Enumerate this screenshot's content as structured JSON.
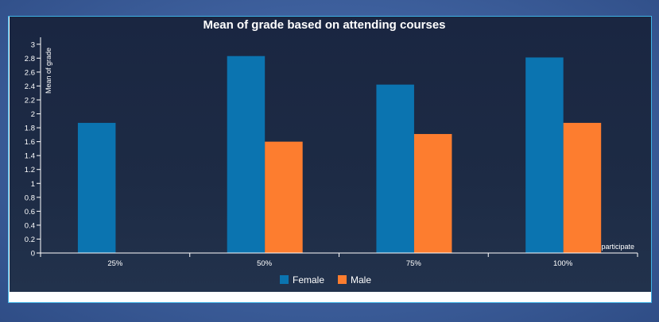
{
  "chart_data": {
    "type": "bar",
    "title": "Mean of grade based on attending courses",
    "xlabel": "participate",
    "ylabel": "Mean of grade",
    "categories": [
      "25%",
      "50%",
      "75%",
      "100%"
    ],
    "series": [
      {
        "name": "Female",
        "color": "#0b74b0",
        "values": [
          1.87,
          2.83,
          2.42,
          2.81
        ]
      },
      {
        "name": "Male",
        "color": "#fd7d2f",
        "values": [
          null,
          1.6,
          1.71,
          1.87
        ]
      }
    ],
    "ylim": [
      0,
      3.1
    ],
    "yticks": [
      "0",
      "0.2",
      "0.4",
      "0.6",
      "0.8",
      "1",
      "1.2",
      "1.4",
      "1.6",
      "1.8",
      "2",
      "2.2",
      "2.4",
      "2.6",
      "2.8",
      "3"
    ],
    "grid": false,
    "legend": "bottom"
  }
}
